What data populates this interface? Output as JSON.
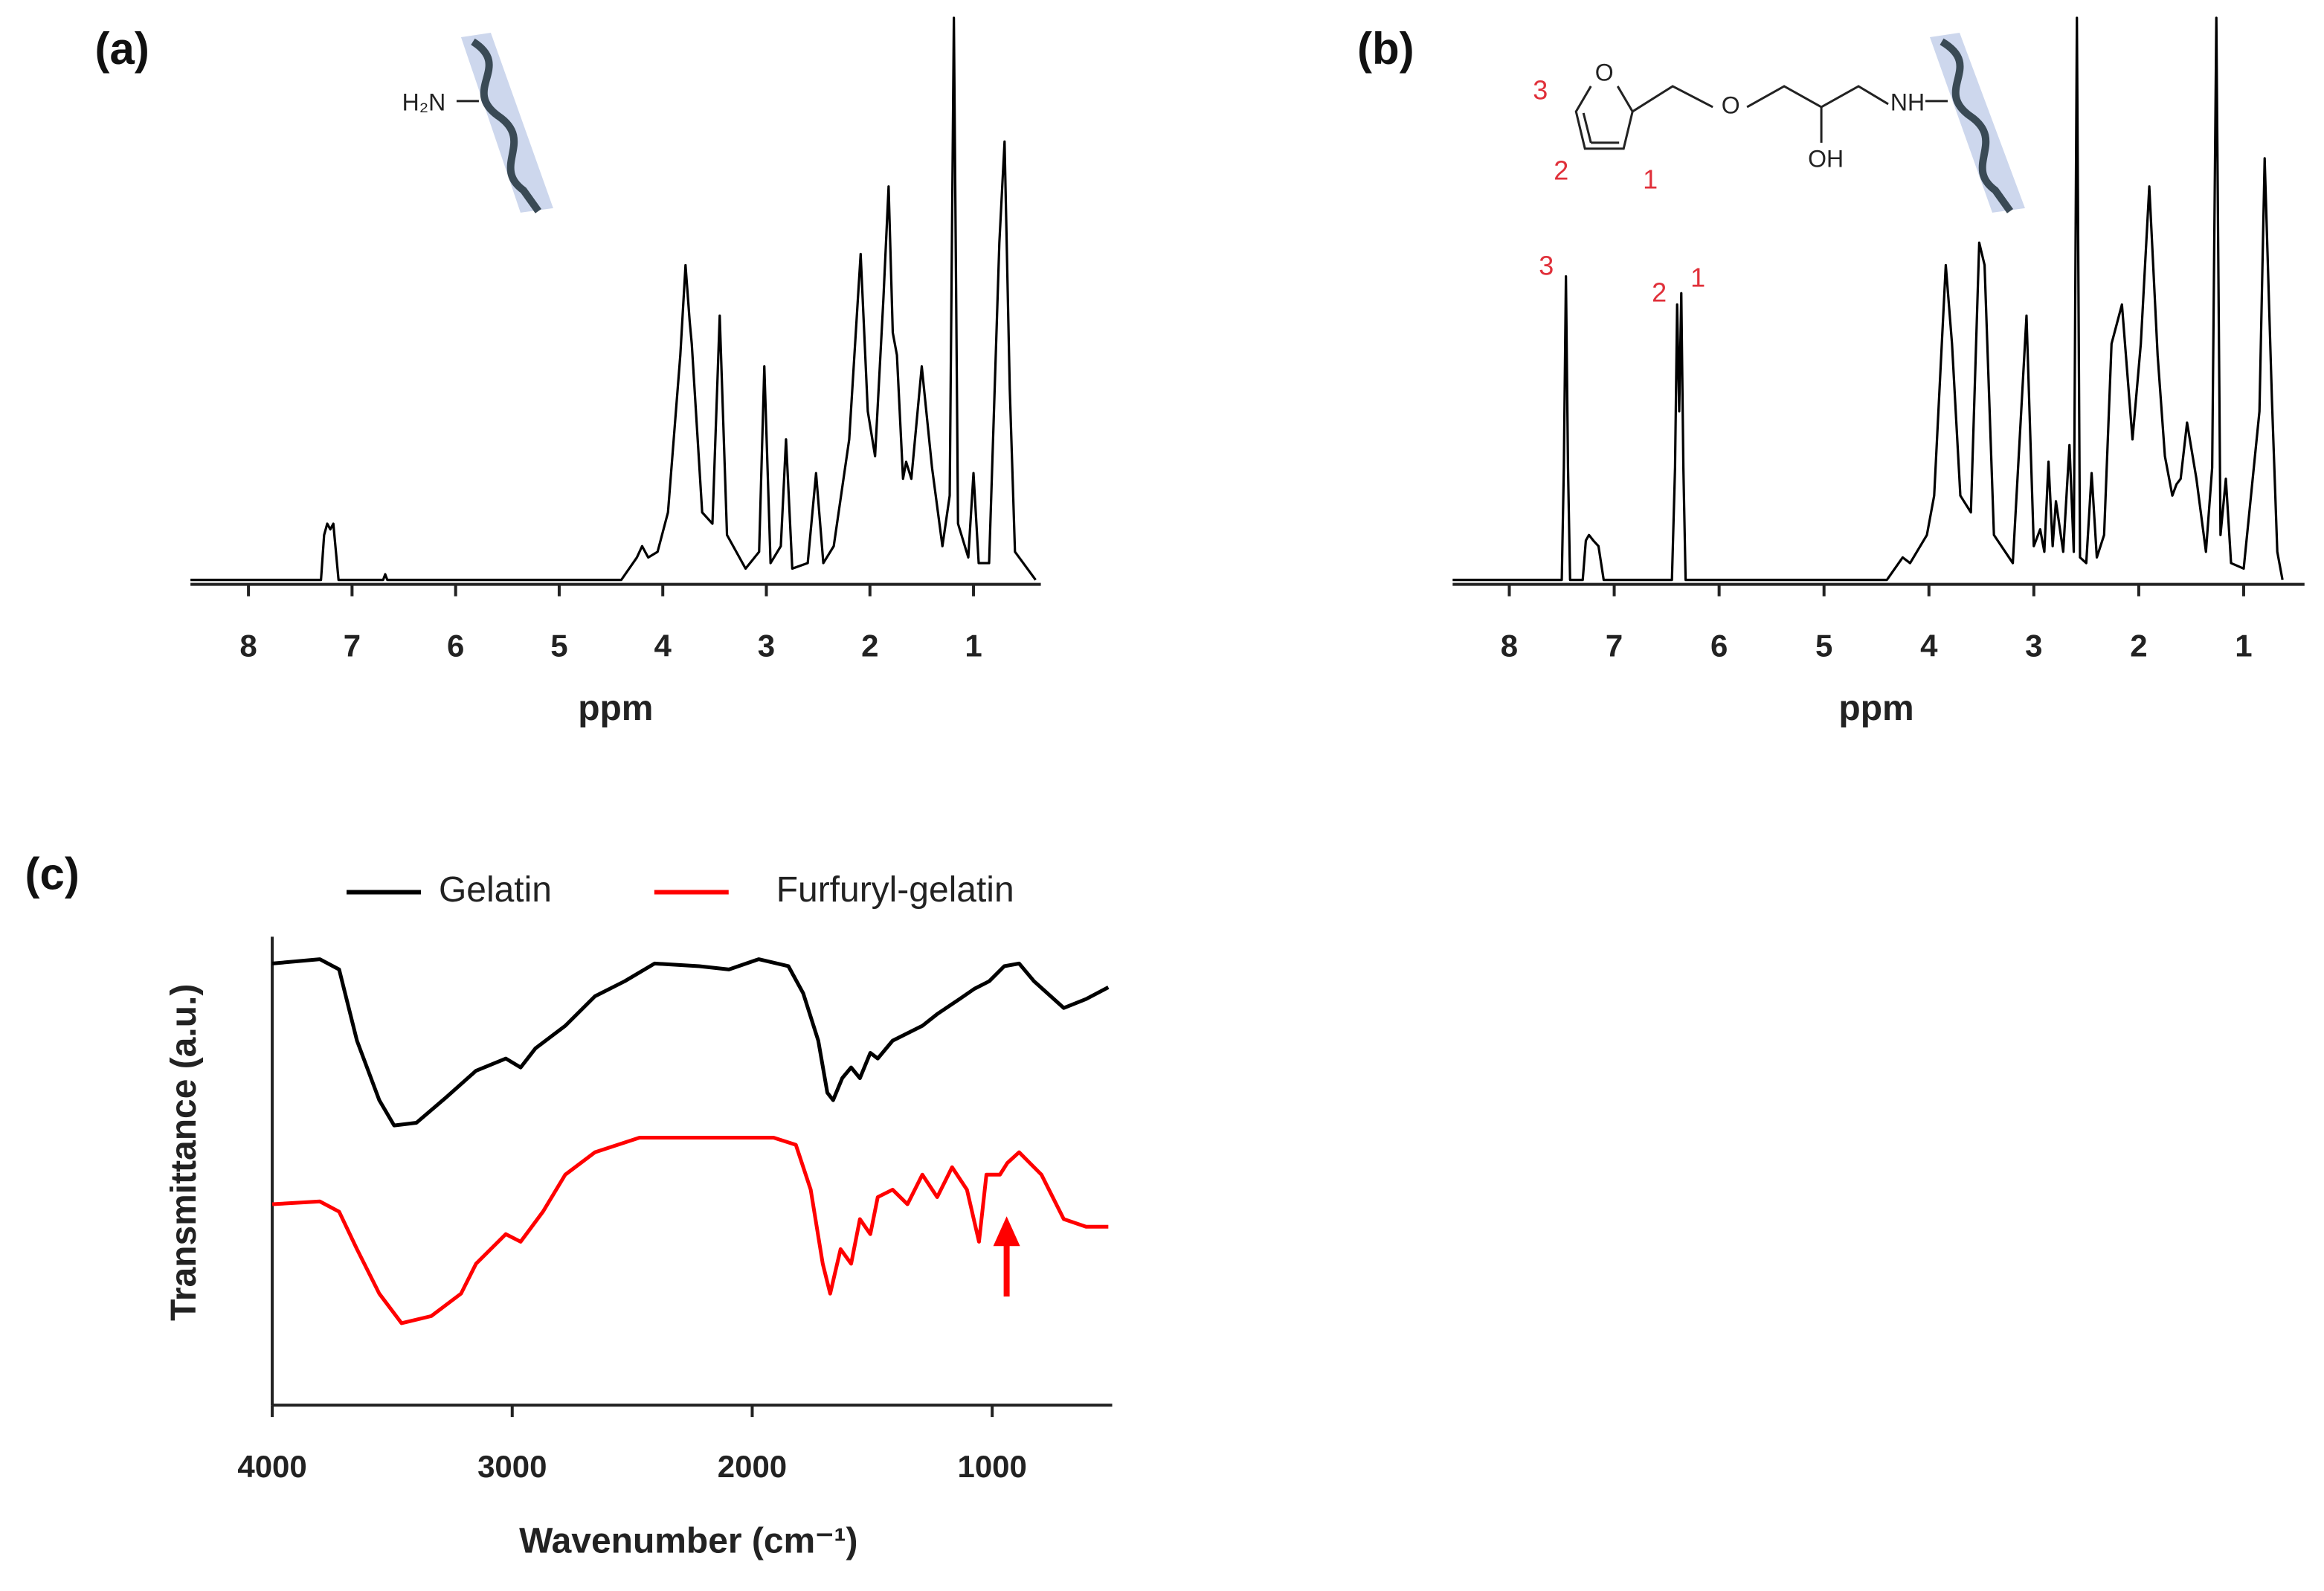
{
  "chart_data": [
    {
      "type": "line",
      "panel_label": "(a)",
      "xlabel": "ppm",
      "color": "#000000",
      "xlim": [
        8.56,
        0.35
      ],
      "xticks": [
        8,
        7,
        6,
        5,
        4,
        3,
        2,
        1
      ],
      "structure_labels": [
        "H₂N"
      ],
      "x": [
        8.56,
        7.3,
        7.27,
        7.24,
        7.21,
        7.18,
        7.13,
        6.7,
        6.68,
        6.66,
        4.4,
        4.25,
        4.2,
        4.14,
        4.05,
        3.95,
        3.83,
        3.78,
        3.74,
        3.72,
        3.62,
        3.52,
        3.45,
        3.38,
        3.2,
        3.07,
        3.02,
        2.96,
        2.86,
        2.81,
        2.75,
        2.6,
        2.52,
        2.45,
        2.35,
        2.2,
        2.09,
        2.02,
        1.95,
        1.87,
        1.82,
        1.78,
        1.74,
        1.68,
        1.65,
        1.6,
        1.5,
        1.4,
        1.3,
        1.23,
        1.19,
        1.15,
        1.05,
        1.0,
        0.95,
        0.85,
        0.75,
        0.7,
        0.65,
        0.6,
        0.4
      ],
      "values": [
        0,
        0,
        8,
        10,
        9,
        10,
        0,
        0,
        1,
        0,
        0,
        4,
        6,
        4,
        5,
        12,
        40,
        56,
        46,
        42,
        12,
        10,
        47,
        8,
        2,
        5,
        38,
        3,
        6,
        25,
        2,
        3,
        19,
        3,
        6,
        25,
        58,
        30,
        22,
        50,
        70,
        44,
        40,
        18,
        21,
        18,
        38,
        20,
        6,
        15,
        100,
        10,
        4,
        19,
        3,
        3,
        60,
        78,
        34,
        5,
        0
      ]
    },
    {
      "type": "line",
      "panel_label": "(b)",
      "xlabel": "ppm",
      "color": "#000000",
      "xlim": [
        8.54,
        0.42
      ],
      "xticks": [
        8,
        7,
        6,
        5,
        4,
        3,
        2,
        1
      ],
      "peak_labels": [
        "3",
        "2",
        "1"
      ],
      "structure_labels": [
        "3",
        "2",
        "1",
        "O",
        "O",
        "OH",
        "NH"
      ],
      "x": [
        8.54,
        7.5,
        7.48,
        7.46,
        7.44,
        7.42,
        7.3,
        7.27,
        7.24,
        7.2,
        7.15,
        7.1,
        6.45,
        6.42,
        6.4,
        6.38,
        6.36,
        6.34,
        6.32,
        4.4,
        4.25,
        4.18,
        4.02,
        3.95,
        3.84,
        3.78,
        3.7,
        3.6,
        3.52,
        3.47,
        3.38,
        3.2,
        3.07,
        3.0,
        2.94,
        2.9,
        2.86,
        2.82,
        2.79,
        2.72,
        2.66,
        2.62,
        2.59,
        2.56,
        2.5,
        2.45,
        2.4,
        2.33,
        2.26,
        2.16,
        2.06,
        1.98,
        1.9,
        1.82,
        1.75,
        1.68,
        1.64,
        1.6,
        1.54,
        1.45,
        1.36,
        1.3,
        1.26,
        1.22,
        1.17,
        1.12,
        1.0,
        0.85,
        0.8,
        0.73,
        0.68,
        0.63
      ],
      "values": [
        0,
        0,
        20,
        54,
        20,
        0,
        0,
        7,
        8,
        7,
        6,
        0,
        0,
        20,
        49,
        30,
        51,
        20,
        0,
        0,
        4,
        3,
        8,
        15,
        56,
        42,
        15,
        12,
        60,
        56,
        8,
        3,
        47,
        6,
        9,
        5,
        21,
        6,
        14,
        5,
        24,
        5,
        100,
        4,
        3,
        19,
        4,
        8,
        42,
        49,
        25,
        42,
        70,
        40,
        22,
        15,
        17,
        18,
        28,
        18,
        5,
        20,
        100,
        8,
        18,
        3,
        2,
        30,
        75,
        32,
        5,
        0
      ]
    },
    {
      "type": "line",
      "panel_label": "(c)",
      "xlabel": "Wavenumber (cm⁻¹)",
      "ylabel": "Transmittance (a.u.)",
      "xlim": [
        4000,
        500
      ],
      "xticks": [
        4000,
        3000,
        2000,
        1000
      ],
      "ylim": [
        0,
        100
      ],
      "series": [
        {
          "name": "Gelatin",
          "color": "#000000",
          "x": [
            4000,
            3802,
            3721,
            3647,
            3554,
            3492,
            3399,
            3275,
            3151,
            3027,
            2965,
            2903,
            2779,
            2655,
            2531,
            2407,
            2221,
            2097,
            1973,
            1849,
            1787,
            1725,
            1687,
            1663,
            1625,
            1588,
            1551,
            1508,
            1477,
            1415,
            1353,
            1291,
            1229,
            1136,
            1074,
            1012,
            950,
            888,
            826,
            702,
            609,
            516
          ],
          "values": [
            94.3,
            95.2,
            93,
            77.8,
            65.1,
            59.7,
            60.3,
            65.7,
            71.4,
            74,
            72.1,
            76.2,
            81,
            87.3,
            90.5,
            94.3,
            93.7,
            93,
            95.2,
            93.7,
            87.9,
            77.8,
            66.7,
            65.1,
            69.8,
            72.1,
            69.8,
            75.2,
            74,
            77.8,
            79.4,
            81,
            83.5,
            86.7,
            88.9,
            90.5,
            93.7,
            94.3,
            90.5,
            84.8,
            86.7,
            89.2
          ]
        },
        {
          "name": "Furfuryl-gelatin",
          "color": "#ff0000",
          "x": [
            4000,
            3802,
            3721,
            3647,
            3554,
            3461,
            3337,
            3213,
            3151,
            3027,
            2965,
            2872,
            2779,
            2655,
            2469,
            2283,
            2035,
            1911,
            1818,
            1756,
            1706,
            1675,
            1632,
            1588,
            1551,
            1508,
            1477,
            1415,
            1353,
            1291,
            1229,
            1167,
            1105,
            1055,
            1024,
            993,
            968,
            937,
            888,
            795,
            702,
            609,
            516
          ],
          "values": [
            42.9,
            43.5,
            41.3,
            33.3,
            23.8,
            17.5,
            19,
            23.8,
            30.2,
            36.5,
            34.9,
            41.3,
            49.2,
            54,
            57.1,
            57.1,
            57.1,
            57.1,
            55.6,
            46,
            30.2,
            23.8,
            33.3,
            30.2,
            39.7,
            36.5,
            44.4,
            46,
            42.9,
            49.2,
            44.4,
            50.8,
            46,
            34.9,
            49.2,
            49.2,
            49.2,
            51.7,
            54,
            49.2,
            39.7,
            38.1,
            38.1
          ]
        }
      ]
    }
  ]
}
